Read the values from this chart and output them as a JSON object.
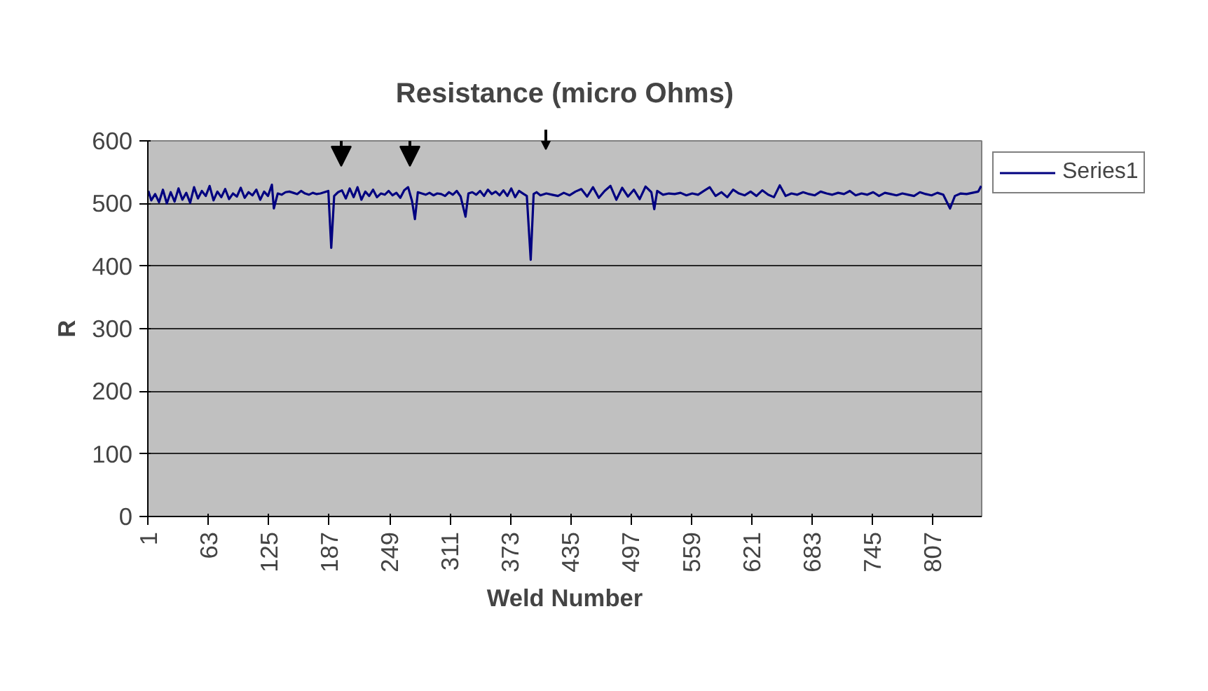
{
  "chart_data": {
    "type": "line",
    "title": "Resistance (micro Ohms)",
    "xlabel": "Weld Number",
    "ylabel": "R",
    "xlim": [
      0.5,
      857.5
    ],
    "xticks": [
      1,
      63,
      125,
      187,
      249,
      311,
      373,
      435,
      497,
      559,
      621,
      683,
      745,
      807
    ],
    "ylim": [
      0,
      600
    ],
    "yticks": [
      0,
      100,
      200,
      300,
      400,
      500,
      600
    ],
    "grid": "y",
    "legend": "right",
    "marker": "none",
    "line_style": "solid",
    "series": [
      {
        "name": "Series1",
        "color": "#000080",
        "x": [
          1,
          4,
          8,
          12,
          16,
          20,
          24,
          28,
          32,
          36,
          40,
          44,
          48,
          52,
          56,
          60,
          64,
          68,
          72,
          76,
          80,
          84,
          88,
          92,
          96,
          100,
          104,
          108,
          112,
          116,
          120,
          124,
          128,
          130,
          134,
          138,
          142,
          146,
          150,
          154,
          158,
          162,
          166,
          170,
          174,
          178,
          182,
          186,
          189,
          192,
          196,
          200,
          204,
          208,
          212,
          216,
          220,
          224,
          228,
          232,
          236,
          240,
          244,
          248,
          252,
          256,
          260,
          264,
          268,
          272,
          275,
          278,
          282,
          286,
          290,
          294,
          298,
          302,
          306,
          310,
          314,
          318,
          322,
          327,
          330,
          334,
          338,
          342,
          346,
          350,
          354,
          358,
          362,
          366,
          370,
          374,
          378,
          382,
          386,
          390,
          394,
          397,
          400,
          404,
          410,
          416,
          422,
          428,
          434,
          440,
          446,
          452,
          458,
          464,
          470,
          476,
          482,
          488,
          494,
          500,
          506,
          512,
          518,
          521,
          524,
          530,
          536,
          542,
          548,
          554,
          560,
          566,
          572,
          578,
          584,
          590,
          596,
          602,
          608,
          614,
          620,
          626,
          632,
          638,
          644,
          650,
          656,
          662,
          668,
          674,
          680,
          686,
          692,
          698,
          704,
          710,
          716,
          722,
          728,
          734,
          740,
          746,
          752,
          758,
          764,
          770,
          776,
          782,
          788,
          794,
          800,
          806,
          812,
          818,
          825,
          830,
          836,
          842,
          848,
          854,
          857
        ],
        "values": [
          520,
          505,
          515,
          502,
          522,
          500,
          518,
          503,
          524,
          506,
          517,
          501,
          526,
          508,
          520,
          512,
          528,
          505,
          519,
          510,
          523,
          507,
          516,
          511,
          525,
          509,
          518,
          513,
          522,
          506,
          519,
          512,
          530,
          492,
          516,
          514,
          518,
          519,
          517,
          515,
          520,
          516,
          514,
          517,
          515,
          516,
          518,
          520,
          429,
          512,
          518,
          521,
          508,
          524,
          510,
          526,
          506,
          519,
          512,
          522,
          510,
          516,
          514,
          520,
          513,
          517,
          509,
          521,
          526,
          504,
          475,
          518,
          516,
          514,
          517,
          513,
          516,
          515,
          512,
          518,
          514,
          520,
          511,
          479,
          516,
          518,
          514,
          520,
          512,
          522,
          515,
          519,
          513,
          521,
          512,
          524,
          510,
          520,
          516,
          512,
          410,
          515,
          518,
          513,
          516,
          514,
          512,
          517,
          513,
          519,
          523,
          511,
          526,
          509,
          520,
          528,
          506,
          525,
          511,
          522,
          507,
          527,
          518,
          491,
          520,
          514,
          516,
          515,
          517,
          513,
          516,
          514,
          520,
          526,
          512,
          518,
          510,
          522,
          516,
          513,
          519,
          512,
          521,
          514,
          510,
          529,
          512,
          516,
          514,
          518,
          515,
          513,
          519,
          516,
          514,
          517,
          515,
          520,
          513,
          516,
          514,
          518,
          512,
          517,
          515,
          513,
          516,
          514,
          512,
          518,
          515,
          513,
          517,
          514,
          492,
          512,
          516,
          515,
          517,
          519,
          528
        ]
      }
    ]
  }
}
